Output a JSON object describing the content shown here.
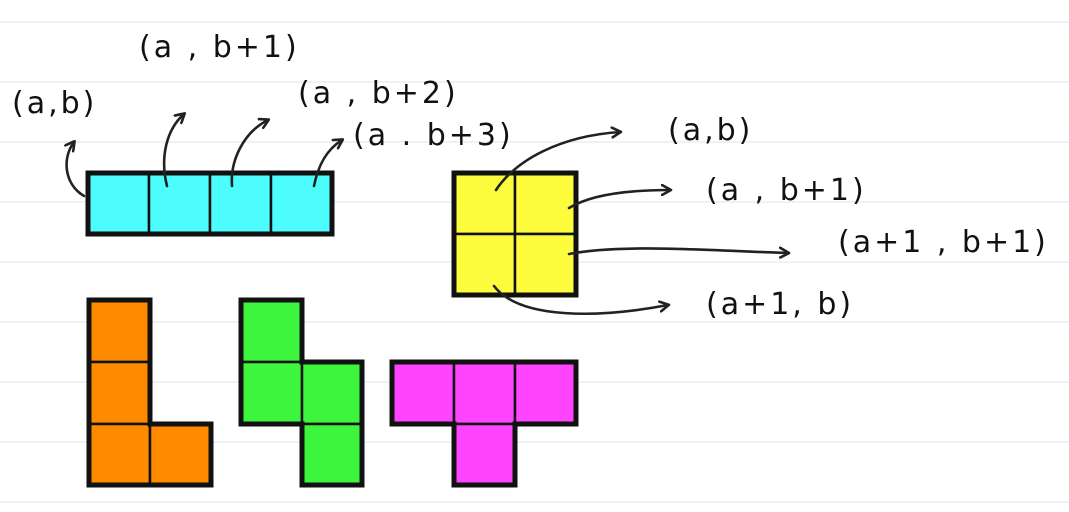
{
  "colors": {
    "paper": "#ffffff",
    "rule_line": "#e3edf8",
    "ink": "#111111",
    "cyan": "#4dfdfd",
    "yellow": "#fdfd3d",
    "orange": "#ff8a00",
    "green": "#3df53d",
    "magenta": "#ff44ff"
  },
  "labels": {
    "i_a_b": "(a,b)",
    "i_a_b1": "(a , b+1)",
    "i_a_b2": "(a , b+2)",
    "i_a_b3": "(a . b+3)",
    "o_a_b": "(a,b)",
    "o_a_b1": "(a , b+1)",
    "o_a1_b1": "(a+1 , b+1)",
    "o_a1_b": "(a+1, b)"
  },
  "pieces": [
    {
      "name": "I",
      "color": "cyan"
    },
    {
      "name": "O",
      "color": "yellow"
    },
    {
      "name": "L",
      "color": "orange"
    },
    {
      "name": "S",
      "color": "green"
    },
    {
      "name": "T",
      "color": "magenta"
    }
  ]
}
